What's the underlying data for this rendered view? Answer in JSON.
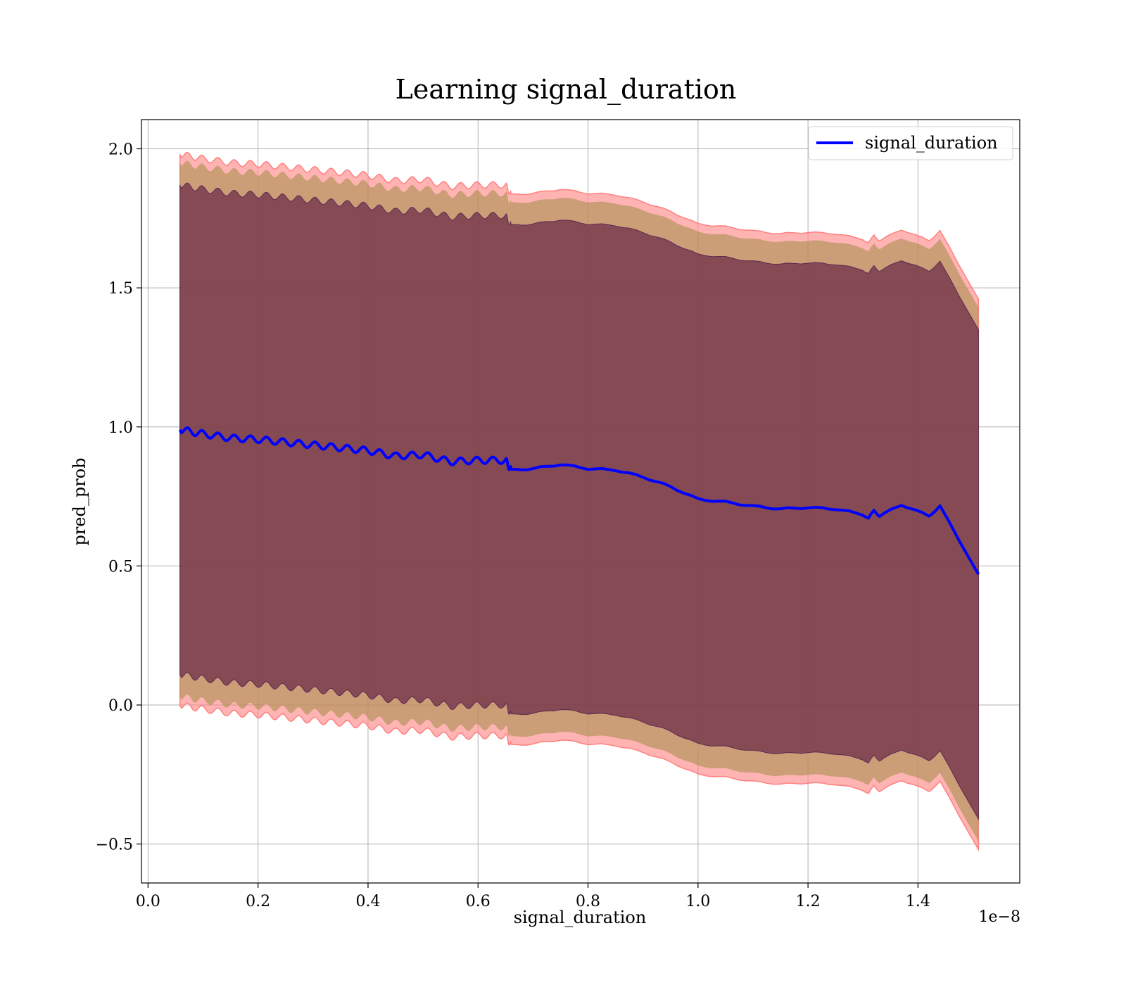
{
  "chart_data": {
    "type": "line",
    "title": "Learning signal_duration",
    "xlabel": "signal_duration",
    "ylabel": "pred_prob",
    "x_offset_text": "1e−8",
    "xlim": [
      -0.012,
      1.585
    ],
    "ylim": [
      -0.64,
      2.105
    ],
    "grid": true,
    "legend_position": "upper right",
    "x_ticks": [
      0.0,
      0.2,
      0.4,
      0.6,
      0.8,
      1.0,
      1.2,
      1.4
    ],
    "x_tick_labels": [
      "0.0",
      "0.2",
      "0.4",
      "0.6",
      "0.8",
      "1.0",
      "1.2",
      "1.4"
    ],
    "y_ticks": [
      -0.5,
      0.0,
      0.5,
      1.0,
      1.5,
      2.0
    ],
    "y_tick_labels": [
      "−0.5",
      "0.0",
      "0.5",
      "1.0",
      "1.5",
      "2.0"
    ],
    "colors": {
      "line": "#0000ff",
      "band_outer": "#ff8080",
      "band_middle": "#a89050",
      "band_inner": "#6b2a48"
    },
    "x": [
      0.058,
      0.1,
      0.15,
      0.2,
      0.25,
      0.3,
      0.35,
      0.4,
      0.45,
      0.5,
      0.55,
      0.6,
      0.65,
      0.66,
      0.7,
      0.75,
      0.8,
      0.85,
      0.9,
      0.95,
      1.0,
      1.05,
      1.1,
      1.15,
      1.2,
      1.25,
      1.3,
      1.31,
      1.32,
      1.33,
      1.37,
      1.42,
      1.44,
      1.51
    ],
    "series": [
      {
        "name": "signal_duration",
        "values": [
          0.99,
          0.975,
          0.96,
          0.955,
          0.945,
          0.935,
          0.925,
          0.915,
          0.895,
          0.9,
          0.875,
          0.88,
          0.88,
          0.845,
          0.85,
          0.865,
          0.85,
          0.845,
          0.82,
          0.785,
          0.74,
          0.73,
          0.715,
          0.705,
          0.71,
          0.705,
          0.685,
          0.67,
          0.7,
          0.68,
          0.72,
          0.68,
          0.715,
          0.47
        ]
      }
    ],
    "band_offsets": {
      "outer": 0.99,
      "middle": 0.96,
      "inner": 0.88
    }
  }
}
